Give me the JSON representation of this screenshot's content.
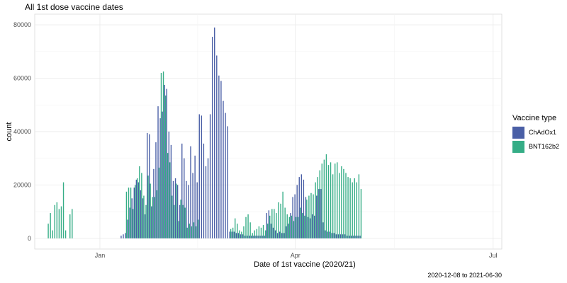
{
  "chart_data": {
    "type": "bar",
    "title": "All 1st dose vaccine dates",
    "xlabel": "Date of 1st vaccine (2020/21)",
    "ylabel": "count",
    "caption": "2020-12-08 to 2021-06-30",
    "x_range": [
      "2020-12-02",
      "2021-07-05"
    ],
    "ylim": [
      -4000,
      84000
    ],
    "x_ticks": [
      {
        "label": "Jan",
        "date": "2021-01-01"
      },
      {
        "label": "Apr",
        "date": "2021-04-01"
      },
      {
        "label": "Jul",
        "date": "2021-07-01"
      }
    ],
    "y_ticks": [
      0,
      20000,
      40000,
      60000,
      80000
    ],
    "grid": true,
    "legend_position": "right",
    "legend_title": "Vaccine type",
    "start_date": "2020-12-08",
    "series": [
      {
        "name": "ChAdOx1",
        "color": "#4a5fa6",
        "values": [
          0,
          0,
          0,
          0,
          0,
          0,
          0,
          0,
          0,
          0,
          0,
          0,
          0,
          0,
          0,
          0,
          0,
          0,
          0,
          0,
          0,
          0,
          0,
          0,
          0,
          0,
          0,
          0,
          0,
          0,
          0,
          0,
          0,
          0,
          1000,
          1500,
          2000,
          7000,
          11500,
          15000,
          19000,
          22000,
          21000,
          18000,
          15000,
          9000,
          39500,
          39000,
          12000,
          26000,
          36000,
          49500,
          45000,
          47500,
          57500,
          56000,
          40000,
          35000,
          21500,
          22500,
          20000,
          12500,
          35500,
          30000,
          21500,
          20000,
          34500,
          24500,
          31000,
          21000,
          46500,
          46000,
          35500,
          27000,
          30000,
          46500,
          75500,
          79000,
          68500,
          61000,
          59000,
          51500,
          47000,
          42000,
          2500,
          2500,
          2500,
          2000,
          2000,
          1500,
          1500,
          1000,
          1000,
          1000,
          1000,
          1000,
          1000,
          1000,
          1000,
          1000,
          1000,
          9500,
          10500,
          5500,
          4000,
          3000,
          2000,
          2500,
          2000,
          2000,
          4500,
          5500,
          9500,
          15500,
          16500,
          20000,
          23000,
          24000,
          22000,
          15500,
          8000,
          7500,
          9000,
          8500,
          16000,
          18500,
          18500,
          6000,
          3000,
          2500,
          2500,
          2000,
          2000,
          1500,
          1500,
          1500,
          1500,
          1500,
          1000,
          1000,
          1000,
          1000,
          1000,
          1000,
          1000
        ]
      },
      {
        "name": "BNT162b2",
        "color": "#35ad86",
        "values": [
          5500,
          9500,
          3000,
          12500,
          13500,
          11000,
          12000,
          21000,
          3000,
          0,
          9000,
          11000,
          0,
          0,
          0,
          0,
          0,
          0,
          0,
          0,
          0,
          0,
          0,
          0,
          0,
          0,
          0,
          0,
          0,
          0,
          0,
          0,
          0,
          0,
          0,
          0,
          17500,
          19000,
          19000,
          11000,
          20000,
          22500,
          27000,
          24500,
          16000,
          12500,
          23500,
          20500,
          15500,
          15500,
          18000,
          26500,
          62000,
          62500,
          53500,
          32000,
          28500,
          16000,
          12500,
          20500,
          6500,
          14500,
          12500,
          11500,
          4000,
          5500,
          4500,
          6000,
          4500,
          7000,
          0,
          0,
          0,
          0,
          0,
          0,
          0,
          0,
          0,
          0,
          0,
          0,
          0,
          0,
          3500,
          4000,
          7500,
          5500,
          3000,
          2500,
          4500,
          8000,
          9000,
          6000,
          2000,
          3000,
          3500,
          4500,
          4000,
          5000,
          3000,
          5500,
          8500,
          11000,
          11000,
          9500,
          13500,
          13000,
          17500,
          11500,
          9000,
          8000,
          8500,
          6500,
          8000,
          8000,
          11500,
          9500,
          8500,
          14500,
          16000,
          17000,
          16500,
          21000,
          23000,
          25500,
          28000,
          29500,
          31500,
          27500,
          28500,
          24000,
          28000,
          28500,
          24500,
          27000,
          26000,
          24500,
          23000,
          22500,
          21000,
          22500,
          21000,
          24000,
          18500
        ]
      }
    ]
  },
  "legend": {
    "title": "Vaccine type",
    "items": [
      {
        "label": "ChAdOx1",
        "color": "#4a5fa6"
      },
      {
        "label": "BNT162b2",
        "color": "#35ad86"
      }
    ]
  }
}
